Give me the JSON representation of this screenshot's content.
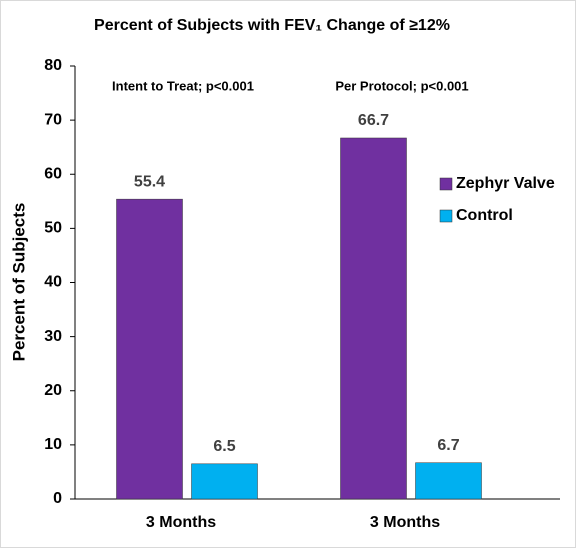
{
  "chart_data": {
    "type": "bar",
    "title": "Percent of Subjects with FEV₁ Change of ≥12%",
    "annotations": [
      "Intent to Treat; p<0.001",
      "Per Protocol; p<0.001"
    ],
    "y_label": "Percent of Subjects",
    "categories": [
      "3 Months",
      "3 Months"
    ],
    "series": [
      {
        "name": "Zephyr Valve",
        "color": "#7030a0",
        "values": [
          55.4,
          66.7
        ]
      },
      {
        "name": "Control",
        "color": "#00b0f0",
        "values": [
          6.5,
          6.7
        ]
      }
    ],
    "ylim": [
      0,
      80
    ],
    "yticks": [
      0,
      10,
      20,
      30,
      40,
      50,
      60,
      70,
      80
    ],
    "grid": false,
    "legend": "right"
  }
}
